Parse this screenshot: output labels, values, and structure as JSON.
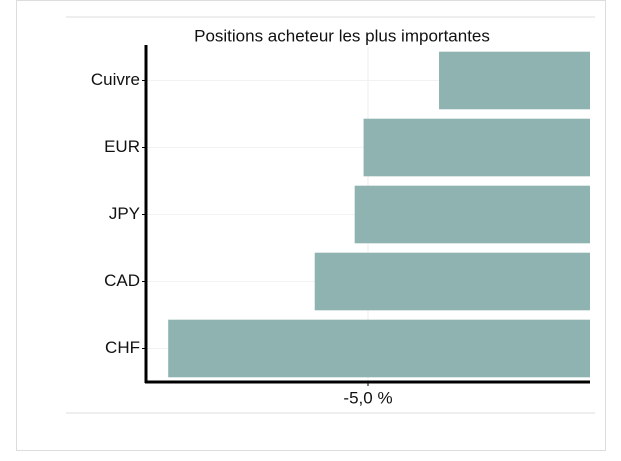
{
  "chart_data": {
    "type": "barh",
    "title": "Positions acheteur les plus importantes",
    "categories": [
      "Cuivre",
      "EUR",
      "JPY",
      "CAD",
      "CHF"
    ],
    "values": [
      -3.4,
      -5.1,
      -5.3,
      -6.2,
      -9.5
    ],
    "color": "#8fb3b0",
    "xlim": [
      -10,
      0
    ],
    "xticks": [
      {
        "value": -5,
        "label": "-5,0 %"
      }
    ],
    "grid": true
  }
}
